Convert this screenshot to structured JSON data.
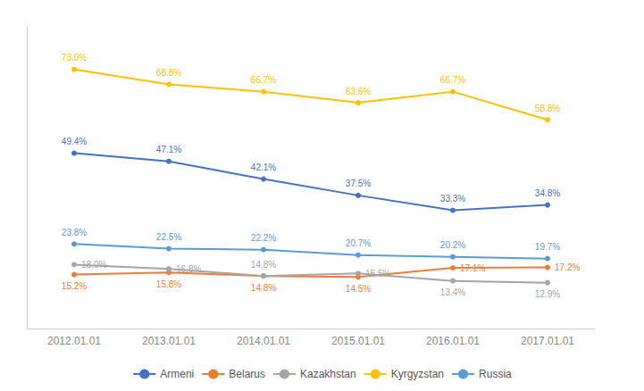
{
  "chart_data": {
    "type": "line",
    "categories": [
      "2012.01.01",
      "2013.01.01",
      "2014.01.01",
      "2015.01.01",
      "2016.01.01",
      "2017.01.01"
    ],
    "series": [
      {
        "name": "Armeni",
        "color": "#4472C4",
        "values": [
          49.4,
          47.1,
          42.1,
          37.5,
          33.3,
          34.8
        ],
        "value_labels": [
          "49.4%",
          "47.1%",
          "42.1%",
          "37.5%",
          "33.3%",
          "34.8%"
        ]
      },
      {
        "name": "Belarus",
        "color": "#ED7D31",
        "values": [
          15.2,
          15.8,
          14.8,
          14.5,
          17.1,
          17.2
        ],
        "value_labels": [
          "15.2%",
          "15.8%",
          "14.8%",
          "14.5%",
          "17.1%",
          "17.2%"
        ]
      },
      {
        "name": "Kazakhstan",
        "color": "#A5A5A5",
        "values": [
          18.0,
          16.8,
          14.8,
          15.5,
          13.4,
          12.9
        ],
        "value_labels": [
          "18.0%",
          "16.8%",
          "14.8%",
          "15.5%",
          "13.4%",
          "12.9%"
        ]
      },
      {
        "name": "Kyrgyzstan",
        "color": "#FFC000",
        "values": [
          73.0,
          68.8,
          66.7,
          63.6,
          66.7,
          58.8
        ],
        "value_labels": [
          "73.0%",
          "68.8%",
          "66.7%",
          "63.6%",
          "66.7%",
          "58.8%"
        ]
      },
      {
        "name": "Russia",
        "color": "#5B9BD5",
        "values": [
          23.8,
          22.5,
          22.2,
          20.7,
          20.2,
          19.7
        ],
        "value_labels": [
          "23.8%",
          "22.5%",
          "22.2%",
          "20.7%",
          "20.2%",
          "19.7%"
        ]
      }
    ],
    "ylim": [
      0,
      85
    ],
    "tick_labels": "x",
    "grid": false,
    "legend": "bottom",
    "data_labels": true,
    "marker": "circle",
    "line_style": "solid"
  }
}
